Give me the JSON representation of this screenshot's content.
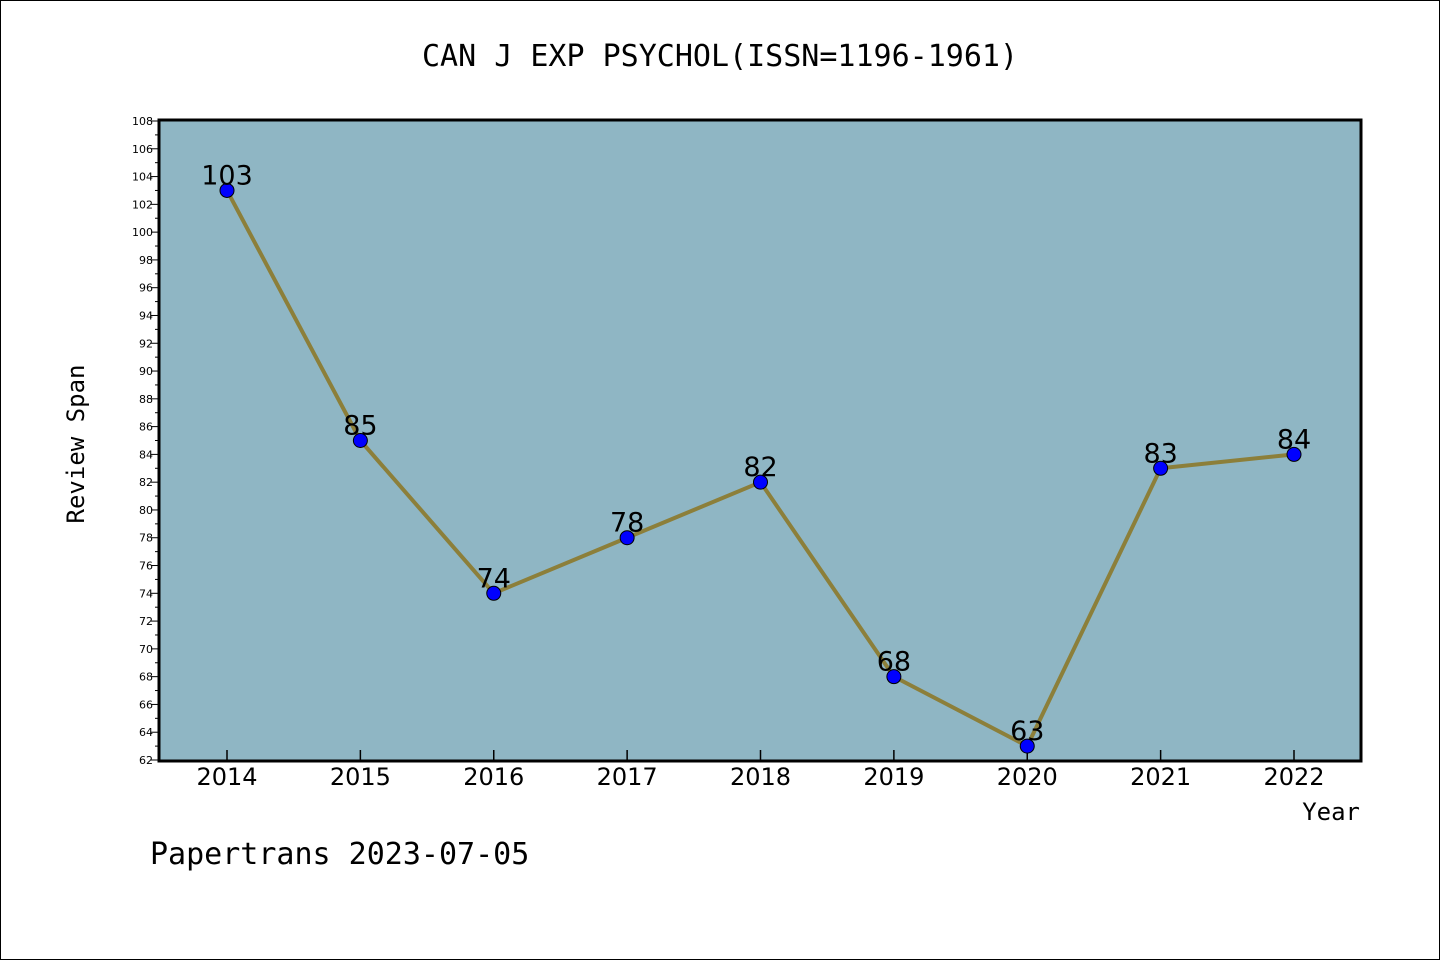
{
  "chart_data": {
    "type": "line",
    "title": "CAN J EXP PSYCHOL(ISSN=1196-1961)",
    "xlabel": "Year",
    "ylabel": "Review Span",
    "categories": [
      "2014",
      "2015",
      "2016",
      "2017",
      "2018",
      "2019",
      "2020",
      "2021",
      "2022"
    ],
    "series": [
      {
        "values": [
          103,
          85,
          74,
          78,
          82,
          68,
          63,
          83,
          84
        ]
      }
    ],
    "data_labels": [
      "103",
      "85",
      "74",
      "78",
      "82",
      "68",
      "63",
      "83",
      "84"
    ],
    "ylim": [
      62,
      108
    ],
    "yticks": [
      "62",
      "64",
      "66",
      "68",
      "70",
      "72",
      "74",
      "76",
      "78",
      "80",
      "82",
      "84",
      "86",
      "88",
      "90",
      "92",
      "94",
      "96",
      "98",
      "100",
      "102",
      "104",
      "106",
      "108"
    ],
    "grid": false,
    "plot_background": "#8fb6c4",
    "line_color": "#8c7f3a",
    "marker_color": "#0000ff"
  },
  "footer": {
    "watermark": "Papertrans 2023-07-05"
  }
}
